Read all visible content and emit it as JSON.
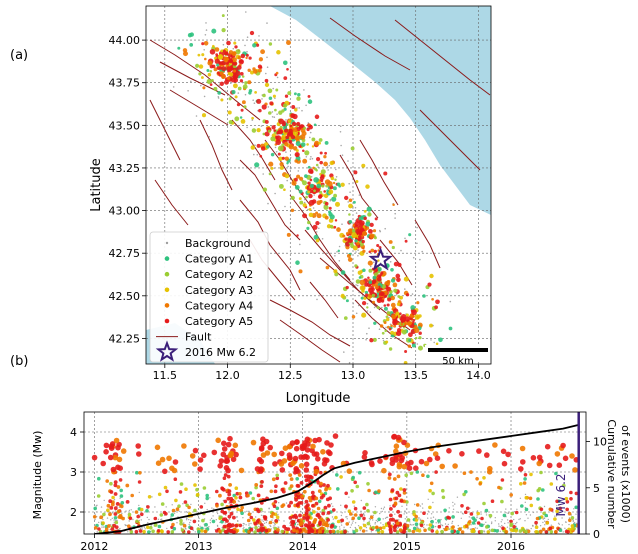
{
  "panel_labels": {
    "a": "(a)",
    "b": "(b)"
  },
  "map": {
    "xlabel": "Longitude",
    "ylabel": "Latitude",
    "xlim": [
      11.35,
      14.1
    ],
    "ylim": [
      42.1,
      44.2
    ],
    "xticks": [
      "11.5",
      "12.0",
      "12.5",
      "13.0",
      "13.5",
      "14.0"
    ],
    "xtick_values": [
      11.5,
      12.0,
      12.5,
      13.0,
      13.5,
      14.0
    ],
    "yticks": [
      "42.25",
      "42.50",
      "42.75",
      "43.00",
      "43.25",
      "43.50",
      "43.75",
      "44.00"
    ],
    "ytick_values": [
      42.25,
      42.5,
      42.75,
      43.0,
      43.25,
      43.5,
      43.75,
      44.0
    ],
    "grid": true,
    "sea_color": "#add8e6",
    "fault_color": "#8b1a1a",
    "scalebar_label": "50 km",
    "star": {
      "lon": 13.22,
      "lat": 42.71,
      "color": "#3b1f7a"
    },
    "legend": [
      {
        "label": "Background",
        "color": "#9e9e9e",
        "symbol": "dot-small"
      },
      {
        "label": "Category A1",
        "color": "#2ec27e",
        "symbol": "dot"
      },
      {
        "label": "Category A2",
        "color": "#9acd32",
        "symbol": "dot"
      },
      {
        "label": "Category A3",
        "color": "#e6c200",
        "symbol": "dot"
      },
      {
        "label": "Category A4",
        "color": "#f07800",
        "symbol": "dot"
      },
      {
        "label": "Category A5",
        "color": "#e51b1b",
        "symbol": "dot"
      },
      {
        "label": "Fault",
        "color": "#8b1a1a",
        "symbol": "line"
      },
      {
        "label": "2016 Mw 6.2",
        "color": "#3b1f7a",
        "symbol": "star"
      }
    ],
    "legend_position": "lower-left",
    "clusters": [
      {
        "lon": 12.0,
        "lat": 43.85,
        "density": "high"
      },
      {
        "lon": 12.5,
        "lat": 43.45,
        "density": "high"
      },
      {
        "lon": 12.7,
        "lat": 43.15,
        "density": "medium"
      },
      {
        "lon": 13.05,
        "lat": 42.85,
        "density": "high"
      },
      {
        "lon": 13.2,
        "lat": 42.55,
        "density": "high"
      },
      {
        "lon": 13.4,
        "lat": 42.35,
        "density": "medium"
      }
    ]
  },
  "timeline": {
    "ylabel_left": "Magnitude (Mw)",
    "ylabel_right": "Cumulative number of events (x1000)",
    "ylabel_right_line1": "Cumulative number",
    "ylabel_right_line2": "of events (x1000)",
    "event_label": "Mw 6.2",
    "xticks": [
      "2012",
      "2013",
      "2014",
      "2015",
      "2016"
    ],
    "xtick_values": [
      2012,
      2013,
      2014,
      2015,
      2016
    ],
    "xlim": [
      2011.9,
      2016.72
    ],
    "yticks_left": [
      "2",
      "3",
      "4"
    ],
    "ytick_left_values": [
      2,
      3,
      4
    ],
    "ylim_left": [
      1.45,
      4.5
    ],
    "yticks_right": [
      "0",
      "5",
      "10"
    ],
    "ytick_right_values": [
      0,
      5,
      10
    ],
    "ylim_right": [
      0,
      13.2
    ],
    "event_time": 2016.65,
    "grid": true
  },
  "chart_data": {
    "type": "line",
    "title": "",
    "xlabel": "",
    "ylabel": "Cumulative number of events (x1000)",
    "x": [
      2012.0,
      2012.25,
      2012.5,
      2012.75,
      2013.0,
      2013.25,
      2013.5,
      2013.75,
      2013.95,
      2014.1,
      2014.2,
      2014.3,
      2014.5,
      2014.75,
      2015.0,
      2015.25,
      2015.5,
      2015.75,
      2016.0,
      2016.25,
      2016.5,
      2016.65
    ],
    "series": [
      {
        "values": [
          0.0,
          0.3,
          1.0,
          1.6,
          2.2,
          2.8,
          3.3,
          3.9,
          4.6,
          5.6,
          6.4,
          7.1,
          7.7,
          8.3,
          8.9,
          9.4,
          9.8,
          10.2,
          10.6,
          11.0,
          11.4,
          11.8
        ]
      }
    ],
    "ylim": [
      0,
      13.2
    ]
  }
}
